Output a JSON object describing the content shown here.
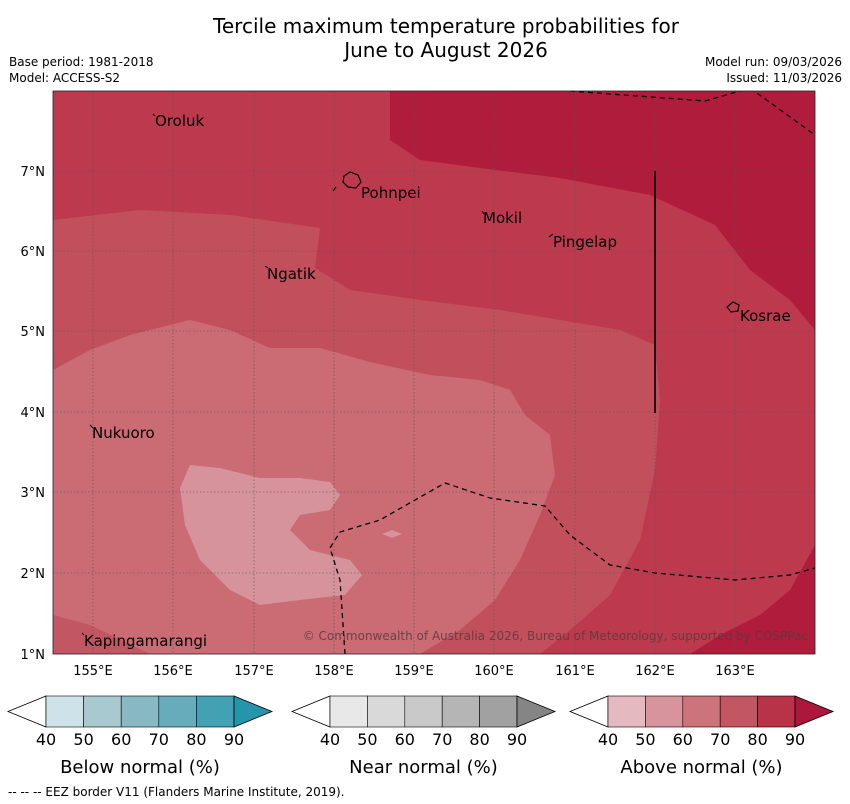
{
  "title": {
    "line1": "Tercile maximum temperature probabilities for",
    "line2": "June to August 2026"
  },
  "meta": {
    "base_period": "Base period: 1981-2018",
    "model": "Model: ACCESS-S2",
    "model_run": "Model run: 09/03/2026",
    "issued": "Issued: 11/03/2026"
  },
  "axes": {
    "lon_ticks": [
      "155°E",
      "156°E",
      "157°E",
      "158°E",
      "159°E",
      "160°E",
      "161°E",
      "162°E",
      "163°E"
    ],
    "lat_ticks": [
      "7°N",
      "6°N",
      "5°N",
      "4°N",
      "3°N",
      "2°N",
      "1°N"
    ]
  },
  "places": [
    "Oroluk",
    "Pohnpei",
    "Mokil",
    "Pingelap",
    "Ngatik",
    "Kosrae",
    "Nukuoro",
    "Kapingamarangi"
  ],
  "copyright": "© Commonwealth of Australia 2026, Bureau of Meteorology, supported by COSPPac",
  "legends": [
    {
      "title": "Below normal (%)",
      "labels": [
        "40",
        "50",
        "60",
        "70",
        "80",
        "90"
      ],
      "colors": [
        "#ffffff",
        "#cde3e9",
        "#a8c9cf",
        "#88b8c2",
        "#66acbb",
        "#43a1b4",
        "#2495ab"
      ]
    },
    {
      "title": "Near normal (%)",
      "labels": [
        "40",
        "50",
        "60",
        "70",
        "80",
        "90"
      ],
      "colors": [
        "#ffffff",
        "#e8e8e8",
        "#d9d9d9",
        "#c9c9c9",
        "#b5b5b5",
        "#a1a1a1",
        "#858585"
      ]
    },
    {
      "title": "Above normal (%)",
      "labels": [
        "40",
        "50",
        "60",
        "70",
        "80",
        "90"
      ],
      "colors": [
        "#ffffff",
        "#e4b9c0",
        "#d7949c",
        "#cc737b",
        "#c25663",
        "#b83248",
        "#ad183a"
      ]
    }
  ],
  "footer": "--  --  -- EEZ border V11 (Flanders Marine Institute, 2019)."
}
